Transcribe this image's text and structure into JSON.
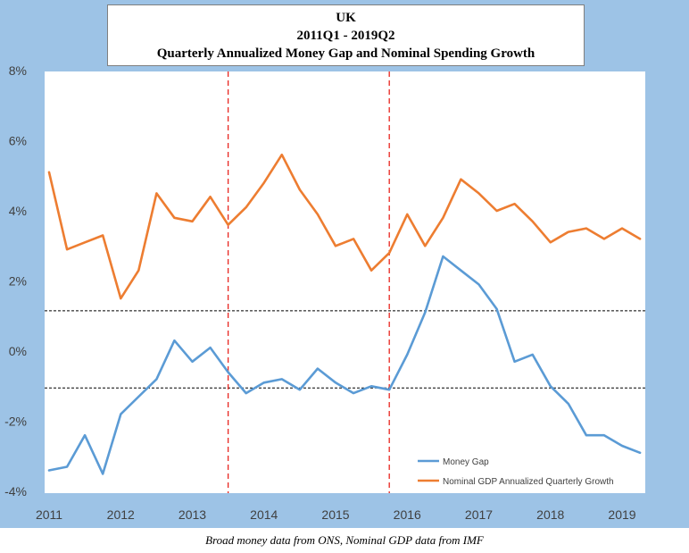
{
  "chart_data": {
    "type": "line",
    "title": [
      "UK",
      "2011Q1 - 2019Q2",
      "Quarterly Annualized Money Gap and Nominal Spending Growth"
    ],
    "caption": "Broad money data from ONS, Nominal GDP data from IMF",
    "x_ticks": [
      "2011",
      "2012",
      "2013",
      "2014",
      "2015",
      "2016",
      "2017",
      "2018",
      "2019"
    ],
    "y_ticks": [
      "8%",
      "6%",
      "4%",
      "2%",
      "0%",
      "-2%",
      "-4%"
    ],
    "ylim": [
      -4,
      8
    ],
    "x": [
      2011.0,
      2011.25,
      2011.5,
      2011.75,
      2012.0,
      2012.25,
      2012.5,
      2012.75,
      2013.0,
      2013.25,
      2013.5,
      2013.75,
      2014.0,
      2014.25,
      2014.5,
      2014.75,
      2015.0,
      2015.25,
      2015.5,
      2015.75,
      2016.0,
      2016.25,
      2016.5,
      2016.75,
      2017.0,
      2017.25,
      2017.5,
      2017.75,
      2018.0,
      2018.25,
      2018.5,
      2018.75,
      2019.0,
      2019.25
    ],
    "series": [
      {
        "name": "Money Gap",
        "color": "#5b9bd5",
        "values": [
          -3.4,
          -3.3,
          -2.4,
          -3.5,
          -1.8,
          -1.3,
          -0.8,
          0.3,
          -0.3,
          0.1,
          -0.6,
          -1.2,
          -0.9,
          -0.8,
          -1.1,
          -0.5,
          -0.9,
          -1.2,
          -1.0,
          -1.1,
          -0.1,
          1.1,
          2.7,
          2.3,
          1.9,
          1.2,
          -0.3,
          -0.1,
          -1.0,
          -1.5,
          -2.4,
          -2.4,
          -2.7,
          -2.9
        ]
      },
      {
        "name": "Nominal GDP Annualized Quarterly Growth",
        "color": "#ed7d31",
        "values": [
          5.1,
          2.9,
          3.1,
          3.3,
          1.5,
          2.3,
          4.5,
          3.8,
          3.7,
          4.4,
          3.6,
          4.1,
          4.8,
          5.6,
          4.6,
          3.9,
          3.0,
          3.2,
          2.3,
          2.8,
          3.9,
          3.0,
          3.8,
          4.9,
          4.5,
          4.0,
          4.2,
          3.7,
          3.1,
          3.4,
          3.5,
          3.2,
          3.5,
          3.2
        ]
      }
    ],
    "reference_lines": {
      "horizontal_dashed_black": [
        1.15,
        -1.05
      ],
      "vertical_dashed_red": [
        2013.5,
        2015.75
      ]
    },
    "legend_placement": "bottom-right",
    "grid": false
  }
}
